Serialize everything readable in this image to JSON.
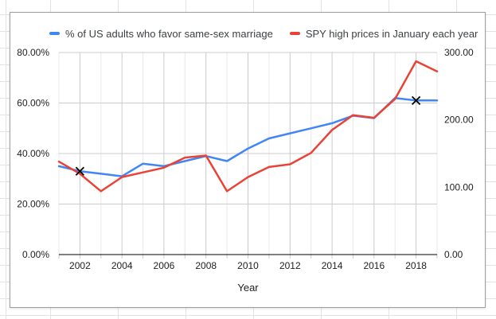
{
  "sheet": {
    "grid_color": "#e2e3e3"
  },
  "chart_panel": {
    "border_color": "#9b9fa3",
    "legend": [
      {
        "label": "% of US adults who favor same-sex marriage",
        "color": "#4285f4"
      },
      {
        "label": "SPY high prices in January each year",
        "color": "#ea4335"
      }
    ]
  },
  "chart_data": {
    "type": "line",
    "title": "",
    "xlabel": "Year",
    "legend_position": "top",
    "grid": true,
    "x": [
      2001,
      2002,
      2003,
      2004,
      2005,
      2006,
      2007,
      2008,
      2009,
      2010,
      2011,
      2012,
      2013,
      2014,
      2015,
      2016,
      2017,
      2018,
      2019
    ],
    "x_tick_labels": [
      "2002",
      "2004",
      "2006",
      "2008",
      "2010",
      "2012",
      "2014",
      "2016",
      "2018"
    ],
    "left_axis": {
      "min": 0,
      "max": 80,
      "ticks": [
        "0.00%",
        "20.00%",
        "40.00%",
        "60.00%",
        "80.00%"
      ],
      "tick_values": [
        0,
        20,
        40,
        60,
        80
      ]
    },
    "right_axis": {
      "min": 0,
      "max": 300,
      "ticks": [
        "0.00",
        "100.00",
        "200.00",
        "300.00"
      ],
      "tick_values": [
        0,
        100,
        200,
        300
      ]
    },
    "series": [
      {
        "name": "% of US adults who favor same-sex marriage",
        "axis": "left",
        "color": "#4285f4",
        "values": [
          35,
          33,
          32,
          31,
          36,
          35,
          37,
          39,
          37,
          42,
          46,
          48,
          50,
          52,
          55,
          54,
          62,
          61,
          61
        ]
      },
      {
        "name": "SPY high prices in January each year",
        "axis": "right",
        "color": "#ea4335",
        "values": [
          138,
          120,
          94,
          115,
          122,
          129,
          144,
          147,
          94,
          115,
          130,
          134,
          151,
          185,
          207,
          203,
          231,
          287,
          272
        ]
      }
    ],
    "markers": [
      {
        "x": 2002,
        "series_index": 0,
        "value": 33,
        "shape": "x",
        "color": "#000000"
      },
      {
        "x": 2018,
        "series_index": 0,
        "value": 61,
        "shape": "x",
        "color": "#000000"
      }
    ],
    "grid_colors": {
      "horizontal": "#cccccc",
      "vertical_major": "#c9cacd",
      "vertical_minor": "#e8e8e8",
      "axis_line": "#000000"
    }
  }
}
